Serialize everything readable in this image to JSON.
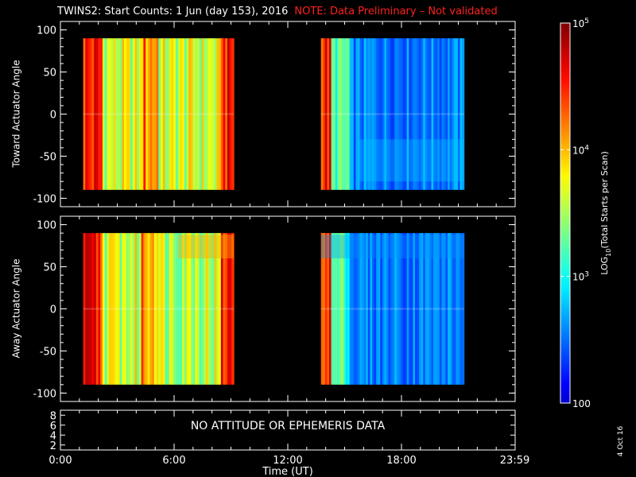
{
  "header": {
    "title": "TWINS2: Start Counts:  1 Jun (day 153), 2016",
    "note": "NOTE: Data Preliminary – Not validated"
  },
  "footer": {
    "plot_date": "4 Oct 16"
  },
  "colors": {
    "background": "#000000",
    "axes": "#ffffff",
    "note": "#ff2020"
  },
  "chart_data": [
    {
      "type": "heatmap",
      "name": "toward-panel",
      "ylabel": "Toward Actuator Angle",
      "ylim": [
        -110,
        110
      ],
      "yticks": [
        -100,
        -50,
        0,
        50,
        100
      ],
      "xlim": [
        0,
        24
      ],
      "data_blocks": [
        {
          "start": 1.2,
          "end": 9.15
        },
        {
          "start": 13.75,
          "end": 21.3
        }
      ],
      "colorscale": "rainbow (blue low, red high)",
      "zlim": [
        100,
        100000
      ]
    },
    {
      "type": "heatmap",
      "name": "away-panel",
      "ylabel": "Away Actuator Angle",
      "ylim": [
        -110,
        110
      ],
      "yticks": [
        -100,
        -50,
        0,
        50,
        100
      ],
      "xlim": [
        0,
        24
      ],
      "data_blocks": [
        {
          "start": 1.2,
          "end": 9.15
        },
        {
          "start": 13.75,
          "end": 21.3
        }
      ],
      "colorscale": "rainbow (blue low, red high)",
      "zlim": [
        100,
        100000
      ]
    },
    {
      "type": "line",
      "name": "ephemeris-panel",
      "ylim": [
        1,
        9
      ],
      "yticks": [
        2,
        4,
        6,
        8
      ],
      "message": "NO ATTITUDE OR EPHEMERIS DATA",
      "xlabel": "Time (UT)",
      "xlim": [
        0,
        24
      ],
      "xticks": [
        0,
        6,
        12,
        18,
        23.98
      ],
      "xticklabels": [
        "0:00",
        "6:00",
        "12:00",
        "18:00",
        "23:59"
      ]
    },
    {
      "type": "colorbar",
      "label_parts": [
        "LOG",
        "10",
        "(Total Starts per Scan)"
      ],
      "range": [
        100,
        100000
      ],
      "ticks": [
        {
          "value": 100,
          "label": "100"
        },
        {
          "value": 1000,
          "base": "10",
          "exp": "3"
        },
        {
          "value": 10000,
          "base": "10",
          "exp": "4"
        },
        {
          "value": 100000,
          "base": "10",
          "exp": "5"
        }
      ]
    }
  ]
}
